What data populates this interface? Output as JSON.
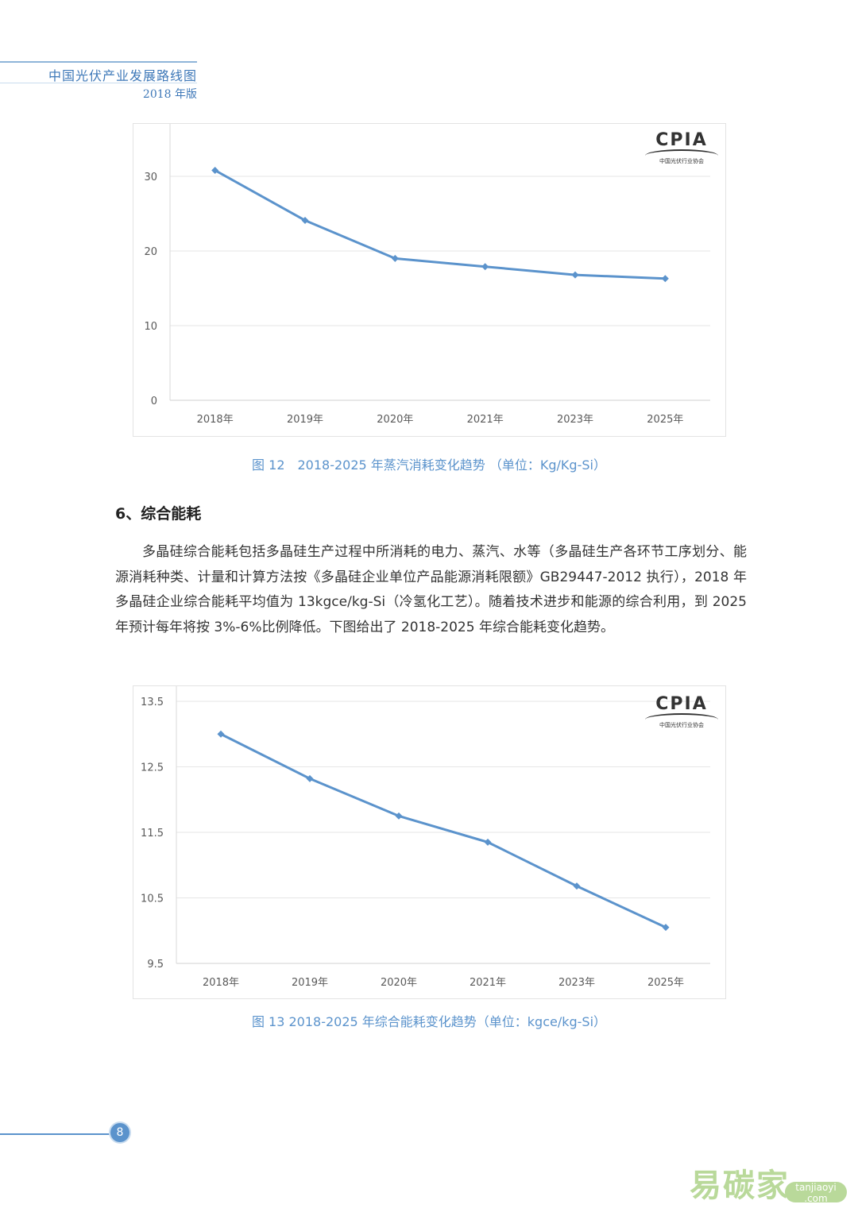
{
  "header": {
    "title": "中国光伏产业发展路线图",
    "edition": "2018 年版"
  },
  "logo": {
    "text": "CPIA",
    "subtext": "中国光伏行业协会"
  },
  "section": {
    "title": "6、综合能耗",
    "paragraph": "多晶硅综合能耗包括多晶硅生产过程中所消耗的电力、蒸汽、水等（多晶硅生产各环节工序划分、能源消耗种类、计量和计算方法按《多晶硅企业单位产品能源消耗限额》GB29447-2012 执行），2018 年多晶硅企业综合能耗平均值为 13kgce/kg-Si（冷氢化工艺）。随着技术进步和能源的综合利用，到 2025 年预计每年将按 3%-6%比例降低。下图给出了 2018-2025 年综合能耗变化趋势。"
  },
  "page_number": "8",
  "watermark": {
    "cn": "易碳家",
    "en": "tanjiaoyi .com"
  },
  "colors": {
    "line": "#5b93cc",
    "caption": "#5b93cc",
    "grid": "#e6e6e6",
    "axis_text": "#595959"
  },
  "chart_data": [
    {
      "type": "line",
      "caption": "图 12　2018-2025 年蒸汽消耗变化趋势 （单位：Kg/Kg-Si）",
      "categories": [
        "2018年",
        "2019年",
        "2020年",
        "2021年",
        "2023年",
        "2025年"
      ],
      "values": [
        30.8,
        24.1,
        19,
        17.9,
        16.8,
        16.3
      ],
      "ylim": [
        0,
        35
      ],
      "yticks": [
        0,
        10,
        20,
        30
      ],
      "grid": true,
      "legend": "none"
    },
    {
      "type": "line",
      "caption": "图 13 2018-2025 年综合能耗变化趋势（单位：kgce/kg-Si）",
      "categories": [
        "2018年",
        "2019年",
        "2020年",
        "2021年",
        "2023年",
        "2025年"
      ],
      "values": [
        13,
        12.32,
        11.75,
        11.35,
        10.68,
        10.05
      ],
      "ylim": [
        9.5,
        13.5
      ],
      "yticks": [
        9.5,
        10.5,
        11.5,
        12.5,
        13.5
      ],
      "grid": true,
      "legend": "none"
    }
  ]
}
